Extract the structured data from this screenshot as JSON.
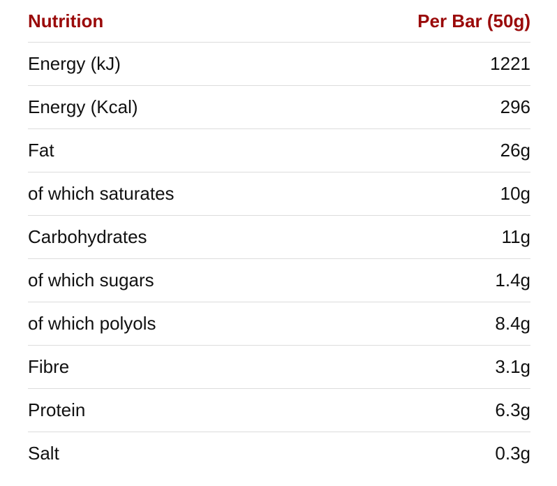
{
  "header": {
    "label": "Nutrition",
    "value": "Per Bar (50g)"
  },
  "colors": {
    "header_text": "#9a0a0a",
    "body_text": "#111111",
    "divider": "#dcdcdc"
  },
  "rows": [
    {
      "label": "Energy (kJ)",
      "value": "1221"
    },
    {
      "label": "Energy (Kcal)",
      "value": "296"
    },
    {
      "label": "Fat",
      "value": "26g"
    },
    {
      "label": "of which saturates",
      "value": "10g"
    },
    {
      "label": "Carbohydrates",
      "value": "11g"
    },
    {
      "label": "of which sugars",
      "value": "1.4g"
    },
    {
      "label": "of which polyols",
      "value": "8.4g"
    },
    {
      "label": "Fibre",
      "value": "3.1g"
    },
    {
      "label": "Protein",
      "value": "6.3g"
    },
    {
      "label": "Salt",
      "value": "0.3g"
    }
  ]
}
